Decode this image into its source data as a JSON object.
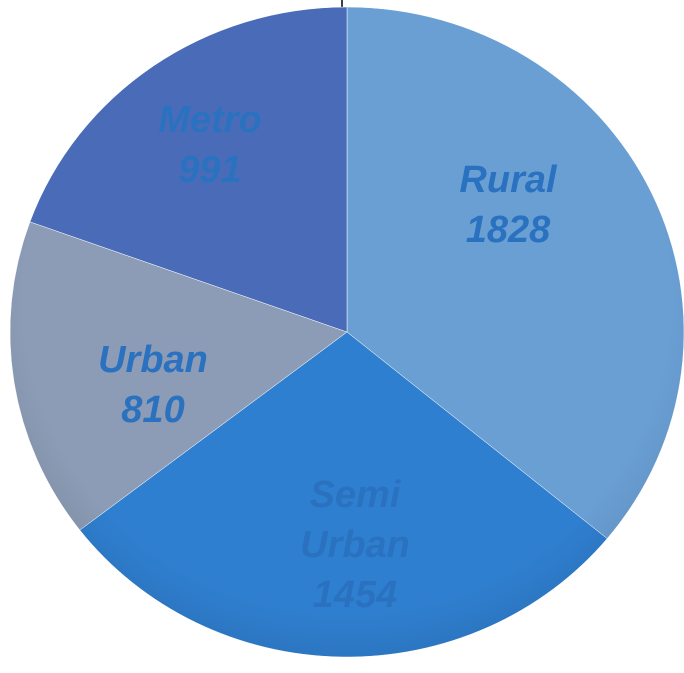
{
  "chart_data": {
    "type": "pie",
    "categories": [
      "Rural",
      "Semi Urban",
      "Urban",
      "Metro"
    ],
    "values": [
      1828,
      1454,
      810,
      991
    ],
    "colors": [
      "#6a9fd4",
      "#2f7fd0",
      "#8c9cb6",
      "#4a6cb8"
    ],
    "label_color": "#2a72c0"
  }
}
